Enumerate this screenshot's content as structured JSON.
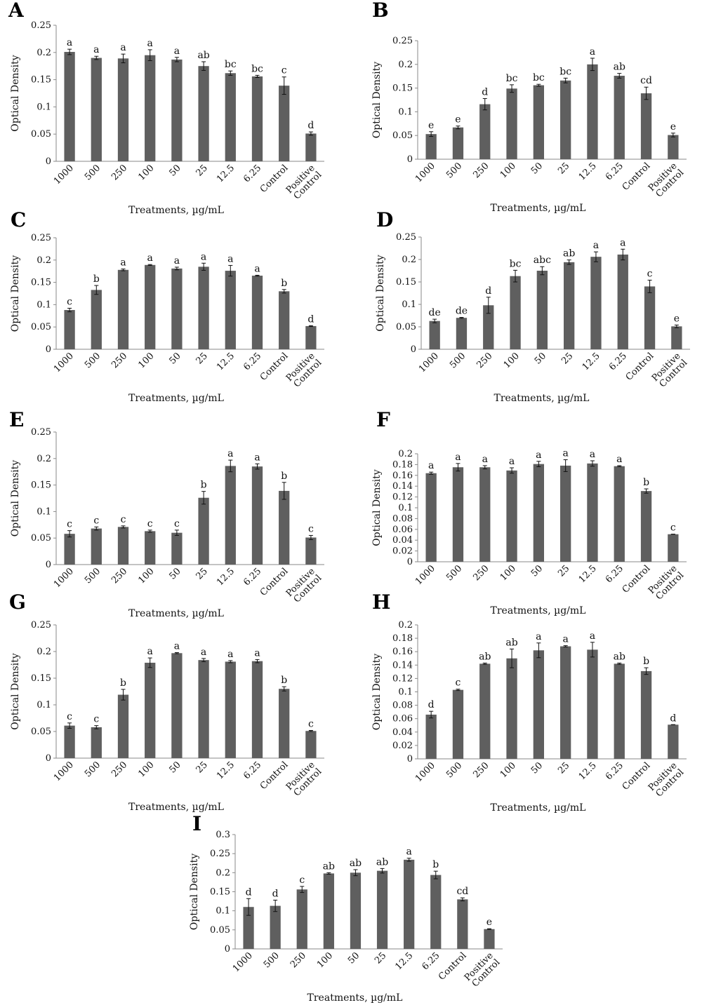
{
  "chart_data": [
    {
      "panel": "A",
      "type": "bar",
      "xlabel": "Treatments, µg/mL",
      "ylabel": "Optical Density",
      "ylim": [
        0,
        0.25
      ],
      "yticks": [
        "0",
        "0.05",
        "0.1",
        "0.15",
        "0.2",
        "0.25"
      ],
      "categories": [
        "1000",
        "500",
        "250",
        "100",
        "50",
        "25",
        "12.5",
        "6.25",
        "Control",
        "Positive Control"
      ],
      "values": [
        0.201,
        0.19,
        0.189,
        0.195,
        0.187,
        0.175,
        0.162,
        0.156,
        0.139,
        0.051
      ],
      "errors": [
        0.005,
        0.003,
        0.008,
        0.01,
        0.004,
        0.008,
        0.004,
        0.002,
        0.016,
        0.003
      ],
      "letters": [
        "a",
        "a",
        "a",
        "a",
        "a",
        "ab",
        "bc",
        "bc",
        "c",
        "d"
      ],
      "grid": false,
      "color": "#5f5f5f"
    },
    {
      "panel": "B",
      "type": "bar",
      "xlabel": "Treatments, µg/mL",
      "ylabel": "Optical Density",
      "ylim": [
        0,
        0.25
      ],
      "yticks": [
        "0",
        "0.05",
        "0.1",
        "0.15",
        "0.2",
        "0.25"
      ],
      "categories": [
        "1000",
        "500",
        "250",
        "100",
        "50",
        "25",
        "12.5",
        "6.25",
        "Control",
        "Positive Control"
      ],
      "values": [
        0.053,
        0.067,
        0.116,
        0.149,
        0.156,
        0.166,
        0.2,
        0.176,
        0.139,
        0.051
      ],
      "errors": [
        0.005,
        0.003,
        0.012,
        0.008,
        0.002,
        0.005,
        0.013,
        0.005,
        0.013,
        0.004
      ],
      "letters": [
        "e",
        "e",
        "d",
        "bc",
        "bc",
        "bc",
        "a",
        "ab",
        "cd",
        "e"
      ],
      "grid": false,
      "color": "#5f5f5f"
    },
    {
      "panel": "C",
      "type": "bar",
      "xlabel": "Treatments, µg/mL",
      "ylabel": "Optical Density",
      "ylim": [
        0,
        0.25
      ],
      "yticks": [
        "0",
        "0.05",
        "0.1",
        "0.15",
        "0.2",
        "0.25"
      ],
      "categories": [
        "1000",
        "500",
        "250",
        "100",
        "50",
        "25",
        "12.5",
        "6.25",
        "Control",
        "Positive Control"
      ],
      "values": [
        0.088,
        0.133,
        0.178,
        0.189,
        0.181,
        0.185,
        0.176,
        0.165,
        0.13,
        0.052
      ],
      "errors": [
        0.004,
        0.01,
        0.002,
        0.001,
        0.003,
        0.008,
        0.012,
        0.001,
        0.004,
        0.001
      ],
      "letters": [
        "c",
        "b",
        "a",
        "a",
        "a",
        "a",
        "a",
        "a",
        "b",
        "d"
      ],
      "grid": false,
      "color": "#5f5f5f"
    },
    {
      "panel": "D",
      "type": "bar",
      "xlabel": "Treatments, µg/mL",
      "ylabel": "Optical Density",
      "ylim": [
        0,
        0.25
      ],
      "yticks": [
        "0",
        "0.05",
        "0.1",
        "0.15",
        "0.2",
        "0.25"
      ],
      "categories": [
        "1000",
        "500",
        "250",
        "100",
        "50",
        "25",
        "12.5",
        "6.25",
        "Control",
        "Positive Control"
      ],
      "values": [
        0.063,
        0.07,
        0.098,
        0.163,
        0.175,
        0.194,
        0.206,
        0.211,
        0.14,
        0.051
      ],
      "errors": [
        0.004,
        0.001,
        0.018,
        0.013,
        0.009,
        0.005,
        0.011,
        0.012,
        0.014,
        0.003
      ],
      "letters": [
        "de",
        "de",
        "d",
        "bc",
        "abc",
        "ab",
        "a",
        "a",
        "c",
        "e"
      ],
      "grid": false,
      "color": "#5f5f5f"
    },
    {
      "panel": "E",
      "type": "bar",
      "xlabel": "Treatments, µg/mL",
      "ylabel": "Optical Density",
      "ylim": [
        0,
        0.25
      ],
      "yticks": [
        "0",
        "0.05",
        "0.1",
        "0.15",
        "0.2",
        "0.25"
      ],
      "categories": [
        "1000",
        "500",
        "250",
        "100",
        "50",
        "25",
        "12.5",
        "6.25",
        "Control",
        "Positive Control"
      ],
      "values": [
        0.058,
        0.068,
        0.071,
        0.063,
        0.06,
        0.126,
        0.186,
        0.185,
        0.139,
        0.051
      ],
      "errors": [
        0.006,
        0.003,
        0.002,
        0.002,
        0.005,
        0.012,
        0.011,
        0.005,
        0.016,
        0.004
      ],
      "letters": [
        "c",
        "c",
        "c",
        "c",
        "c",
        "b",
        "a",
        "a",
        "b",
        "c"
      ],
      "grid": false,
      "color": "#5f5f5f"
    },
    {
      "panel": "F",
      "type": "bar",
      "xlabel": "Treatments, µg/mL",
      "ylabel": "Optical Density",
      "ylim": [
        0,
        0.2
      ],
      "yticks": [
        "0",
        "0.02",
        "0.04",
        "0.06",
        "0.08",
        "0.1",
        "0.12",
        "0.14",
        "0.16",
        "0.18",
        "0.2"
      ],
      "categories": [
        "1000",
        "500",
        "250",
        "100",
        "50",
        "25",
        "12.5",
        "6.25",
        "Control",
        "Positive Control"
      ],
      "values": [
        0.164,
        0.175,
        0.175,
        0.169,
        0.181,
        0.178,
        0.182,
        0.177,
        0.131,
        0.051
      ],
      "errors": [
        0.002,
        0.007,
        0.003,
        0.005,
        0.005,
        0.011,
        0.005,
        0.001,
        0.004,
        0.0
      ],
      "letters": [
        "a",
        "a",
        "a",
        "a",
        "a",
        "a",
        "a",
        "a",
        "b",
        "c"
      ],
      "grid": false,
      "color": "#5f5f5f"
    },
    {
      "panel": "G",
      "type": "bar",
      "xlabel": "Treatments, µg/mL",
      "ylabel": "Optical Density",
      "ylim": [
        0,
        0.25
      ],
      "yticks": [
        "0",
        "0.05",
        "0.1",
        "0.15",
        "0.2",
        "0.25"
      ],
      "categories": [
        "1000",
        "500",
        "250",
        "100",
        "50",
        "25",
        "12.5",
        "6.25",
        "Control",
        "Positive Control"
      ],
      "values": [
        0.061,
        0.058,
        0.119,
        0.179,
        0.197,
        0.184,
        0.181,
        0.182,
        0.13,
        0.051
      ],
      "errors": [
        0.005,
        0.003,
        0.01,
        0.009,
        0.001,
        0.003,
        0.002,
        0.003,
        0.004,
        0.001
      ],
      "letters": [
        "c",
        "c",
        "b",
        "a",
        "a",
        "a",
        "a",
        "a",
        "b",
        "c"
      ],
      "grid": false,
      "color": "#5f5f5f"
    },
    {
      "panel": "H",
      "type": "bar",
      "xlabel": "Treatments, µg/mL",
      "ylabel": "Optical Density",
      "ylim": [
        0,
        0.2
      ],
      "yticks": [
        "0",
        "0.02",
        "0.04",
        "0.06",
        "0.08",
        "0.1",
        "0.12",
        "0.14",
        "0.16",
        "0.18",
        "0.2"
      ],
      "categories": [
        "1000",
        "500",
        "250",
        "100",
        "50",
        "25",
        "12.5",
        "6.25",
        "Control",
        "Positive Control"
      ],
      "values": [
        0.066,
        0.103,
        0.142,
        0.15,
        0.162,
        0.168,
        0.163,
        0.142,
        0.131,
        0.051
      ],
      "errors": [
        0.005,
        0.001,
        0.001,
        0.014,
        0.011,
        0.001,
        0.011,
        0.001,
        0.005,
        0.0
      ],
      "letters": [
        "d",
        "c",
        "ab",
        "ab",
        "a",
        "a",
        "a",
        "ab",
        "b",
        "d"
      ],
      "grid": false,
      "color": "#5f5f5f"
    },
    {
      "panel": "I",
      "type": "bar",
      "xlabel": "Treatments, µg/mL",
      "ylabel": "Optical Density",
      "ylim": [
        0,
        0.3
      ],
      "yticks": [
        "0",
        "0.05",
        "0.1",
        "0.15",
        "0.2",
        "0.25",
        "0.3"
      ],
      "categories": [
        "1000",
        "500",
        "250",
        "100",
        "50",
        "25",
        "12.5",
        "6.25",
        "Control",
        "Positive Control"
      ],
      "values": [
        0.11,
        0.113,
        0.156,
        0.198,
        0.2,
        0.205,
        0.234,
        0.194,
        0.13,
        0.052
      ],
      "errors": [
        0.022,
        0.015,
        0.008,
        0.002,
        0.008,
        0.006,
        0.004,
        0.01,
        0.004,
        0.001
      ],
      "letters": [
        "d",
        "d",
        "c",
        "ab",
        "ab",
        "ab",
        "a",
        "b",
        "cd",
        "e"
      ],
      "grid": false,
      "color": "#5f5f5f"
    }
  ]
}
